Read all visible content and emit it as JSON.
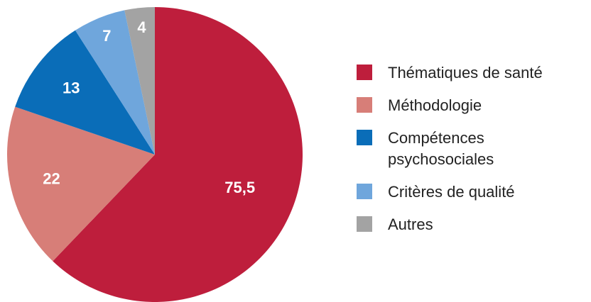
{
  "chart_data": {
    "type": "pie",
    "categories": [
      "Thématiques de santé",
      "Méthodologie",
      "Compétences psychosociales",
      "Critères de qualité",
      "Autres"
    ],
    "values": [
      75.5,
      22,
      13,
      7,
      4
    ],
    "value_labels": [
      "75,5",
      "22",
      "13",
      "7",
      "4"
    ],
    "colors": [
      "#be1e3c",
      "#d77e78",
      "#0a6db8",
      "#6fa6dc",
      "#a3a3a3"
    ],
    "legend": "right"
  }
}
